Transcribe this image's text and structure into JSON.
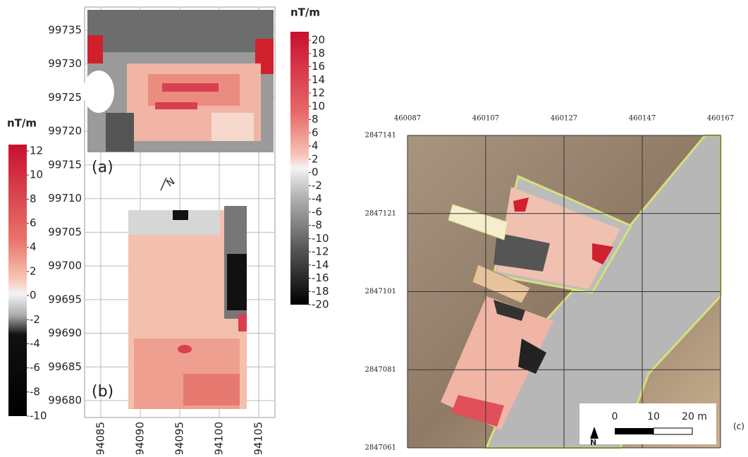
{
  "panel_a": {
    "label": "(a)"
  },
  "panel_b": {
    "label": "(b)"
  },
  "panel_c": {
    "label": "(c)"
  },
  "left_map": {
    "yticks": [
      99735,
      99730,
      99725,
      99720,
      99715,
      99710,
      99705,
      99700,
      99695,
      99690,
      99685,
      99680
    ],
    "xticks": [
      94085,
      94090,
      94095,
      94100,
      94105
    ],
    "north": "N"
  },
  "colorbar_b": {
    "unit": "nT/m",
    "ticks": [
      12,
      10,
      8,
      6,
      4,
      2,
      0,
      -2,
      -4,
      -6,
      -8,
      -10
    ]
  },
  "colorbar_a": {
    "unit": "nT/m",
    "ticks": [
      20,
      18,
      16,
      14,
      12,
      10,
      8,
      6,
      4,
      2,
      0,
      -2,
      -4,
      -6,
      -8,
      -10,
      -12,
      -14,
      -16,
      -18,
      -20
    ]
  },
  "right_map": {
    "xticks": [
      460087,
      460107,
      460127,
      460147,
      460167
    ],
    "yticks": [
      2847141,
      2847121,
      2847101,
      2847081,
      2847061
    ],
    "scale_bar": {
      "labels": [
        "0",
        "10",
        "20 m"
      ],
      "north": "N"
    }
  }
}
